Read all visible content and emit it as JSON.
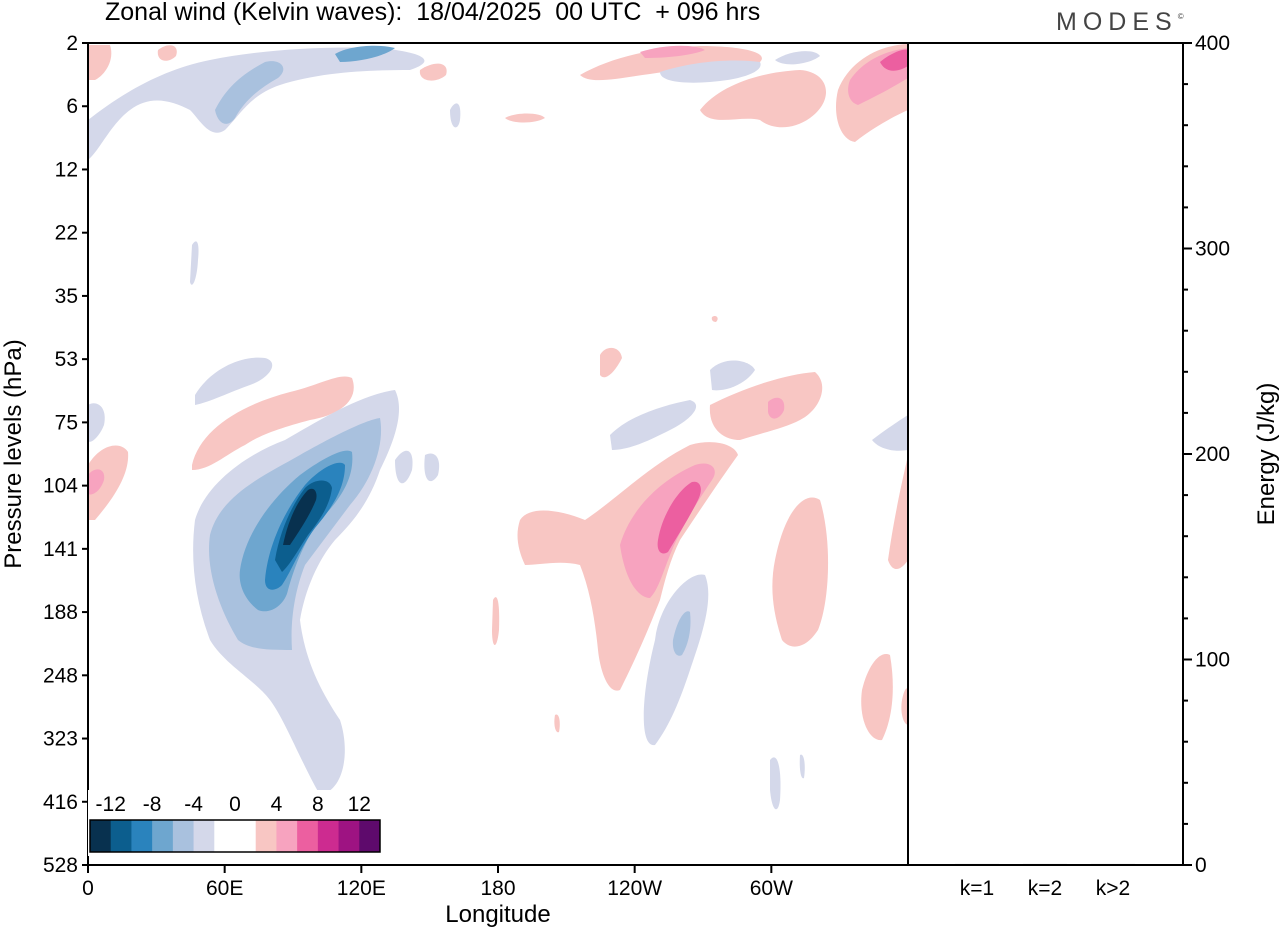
{
  "header": {
    "title": "Zonal wind (Kelvin waves):  18/04/2025  00 UTC  + 096 hrs",
    "brand": "MODES",
    "brand_mark": "©"
  },
  "chart_data": {
    "type": "heatmap",
    "title": "Zonal wind (Kelvin waves):  18/04/2025  00 UTC  + 096 hrs",
    "xlabel": "Longitude",
    "ylabel": "Pressure levels (hPa)",
    "x_ticks": [
      "0",
      "60E",
      "120E",
      "180",
      "120W",
      "60W"
    ],
    "y_ticks": [
      "2",
      "6",
      "12",
      "22",
      "35",
      "53",
      "75",
      "104",
      "141",
      "188",
      "248",
      "323",
      "416",
      "528"
    ],
    "colorbar": {
      "labels": [
        "-12",
        "-8",
        "-4",
        "0",
        "4",
        "8",
        "12"
      ],
      "colors": [
        "#08314f",
        "#0c5e8e",
        "#2a83bd",
        "#6ea6cf",
        "#a9c1de",
        "#d4d8ea",
        "#ffffff",
        "#ffffff",
        "#f8c6c3",
        "#f7a3bf",
        "#ec5fa0",
        "#cd2b90",
        "#9e1382",
        "#5e0a6c"
      ]
    },
    "contour_fields": [
      {
        "feature": "stratospheric easterlies near 60E-120E",
        "levels": [
          -8,
          -4
        ],
        "color": "blue"
      },
      {
        "feature": "stratospheric westerlies near 60W-0",
        "levels": [
          4,
          8
        ],
        "color": "red"
      },
      {
        "feature": "easterly tilted anomaly 60E-120E, 75-420 hPa",
        "min_value": -12,
        "color": "blue"
      },
      {
        "feature": "westerly tilted anomaly 180-60W, 75-270 hPa",
        "max_value": 8,
        "color": "red"
      }
    ],
    "energy_panel": {
      "ylabel": "Energy (J/kg)",
      "ylim": [
        0,
        400
      ],
      "y_ticks": [
        "0",
        "100",
        "200",
        "300",
        "400"
      ],
      "categories": [
        "k=1",
        "k=2",
        "k>2"
      ],
      "values": [
        0.5,
        0.5,
        0.5
      ]
    }
  }
}
